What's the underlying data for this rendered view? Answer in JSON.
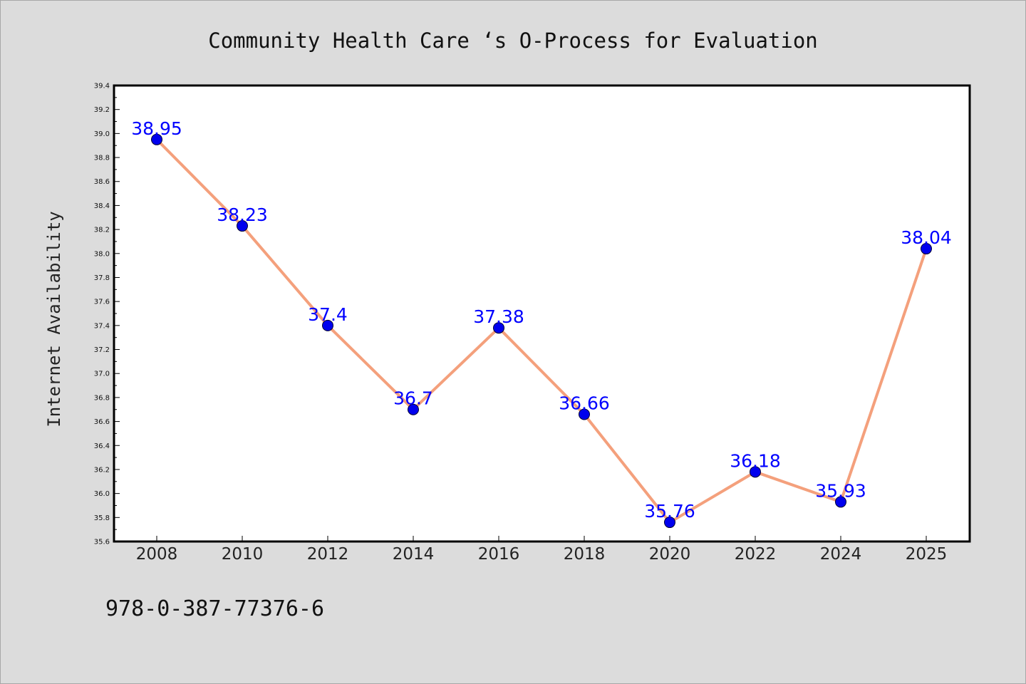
{
  "chart_data": {
    "type": "line",
    "title": "Community Health Care ‘s O-Process for Evaluation",
    "xlabel": "",
    "ylabel": "Internet Availability",
    "categories": [
      "2008",
      "2010",
      "2012",
      "2014",
      "2016",
      "2018",
      "2020",
      "2022",
      "2024",
      "2025"
    ],
    "series": [
      {
        "values": [
          38.95,
          38.23,
          37.4,
          36.7,
          37.38,
          36.66,
          35.76,
          36.18,
          35.93,
          38.04
        ],
        "data_labels": [
          "38.95",
          "38.23",
          "37.4",
          "36.7",
          "37.38",
          "36.66",
          "35.76",
          "36.18",
          "35.93",
          "38.04"
        ]
      }
    ],
    "ylim": [
      35.6,
      39.4
    ],
    "yticks": [
      "35.6",
      "35.8",
      "36.0",
      "36.2",
      "36.4",
      "36.6",
      "36.8",
      "37.0",
      "37.2",
      "37.4",
      "37.6",
      "37.8",
      "38.0",
      "38.2",
      "38.4",
      "38.6",
      "38.8",
      "39.0",
      "39.2",
      "39.4"
    ],
    "grid": false,
    "line_color": "#f4a07c",
    "marker_color": "#0000ee",
    "label_color": "#0000ff"
  },
  "footer": {
    "code": "978-0-387-77376-6"
  }
}
